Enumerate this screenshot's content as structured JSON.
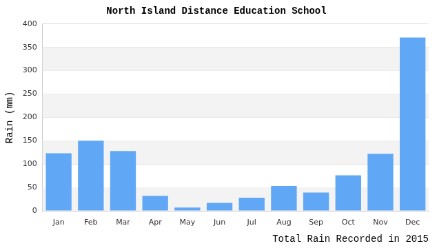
{
  "chart_data": {
    "type": "bar",
    "title": "North Island Distance Education School",
    "ylabel": "Rain (mm)",
    "xlabel": "Total Rain Recorded in 2015",
    "categories": [
      "Jan",
      "Feb",
      "Mar",
      "Apr",
      "May",
      "Jun",
      "Jul",
      "Aug",
      "Sep",
      "Oct",
      "Nov",
      "Dec"
    ],
    "values": [
      123,
      150,
      128,
      32,
      7,
      17,
      28,
      53,
      39,
      76,
      122,
      371
    ],
    "color": "#60a8f5",
    "ylim": [
      0,
      400
    ],
    "yticks": [
      0,
      50,
      100,
      150,
      200,
      250,
      300,
      350,
      400
    ],
    "grid": true
  }
}
